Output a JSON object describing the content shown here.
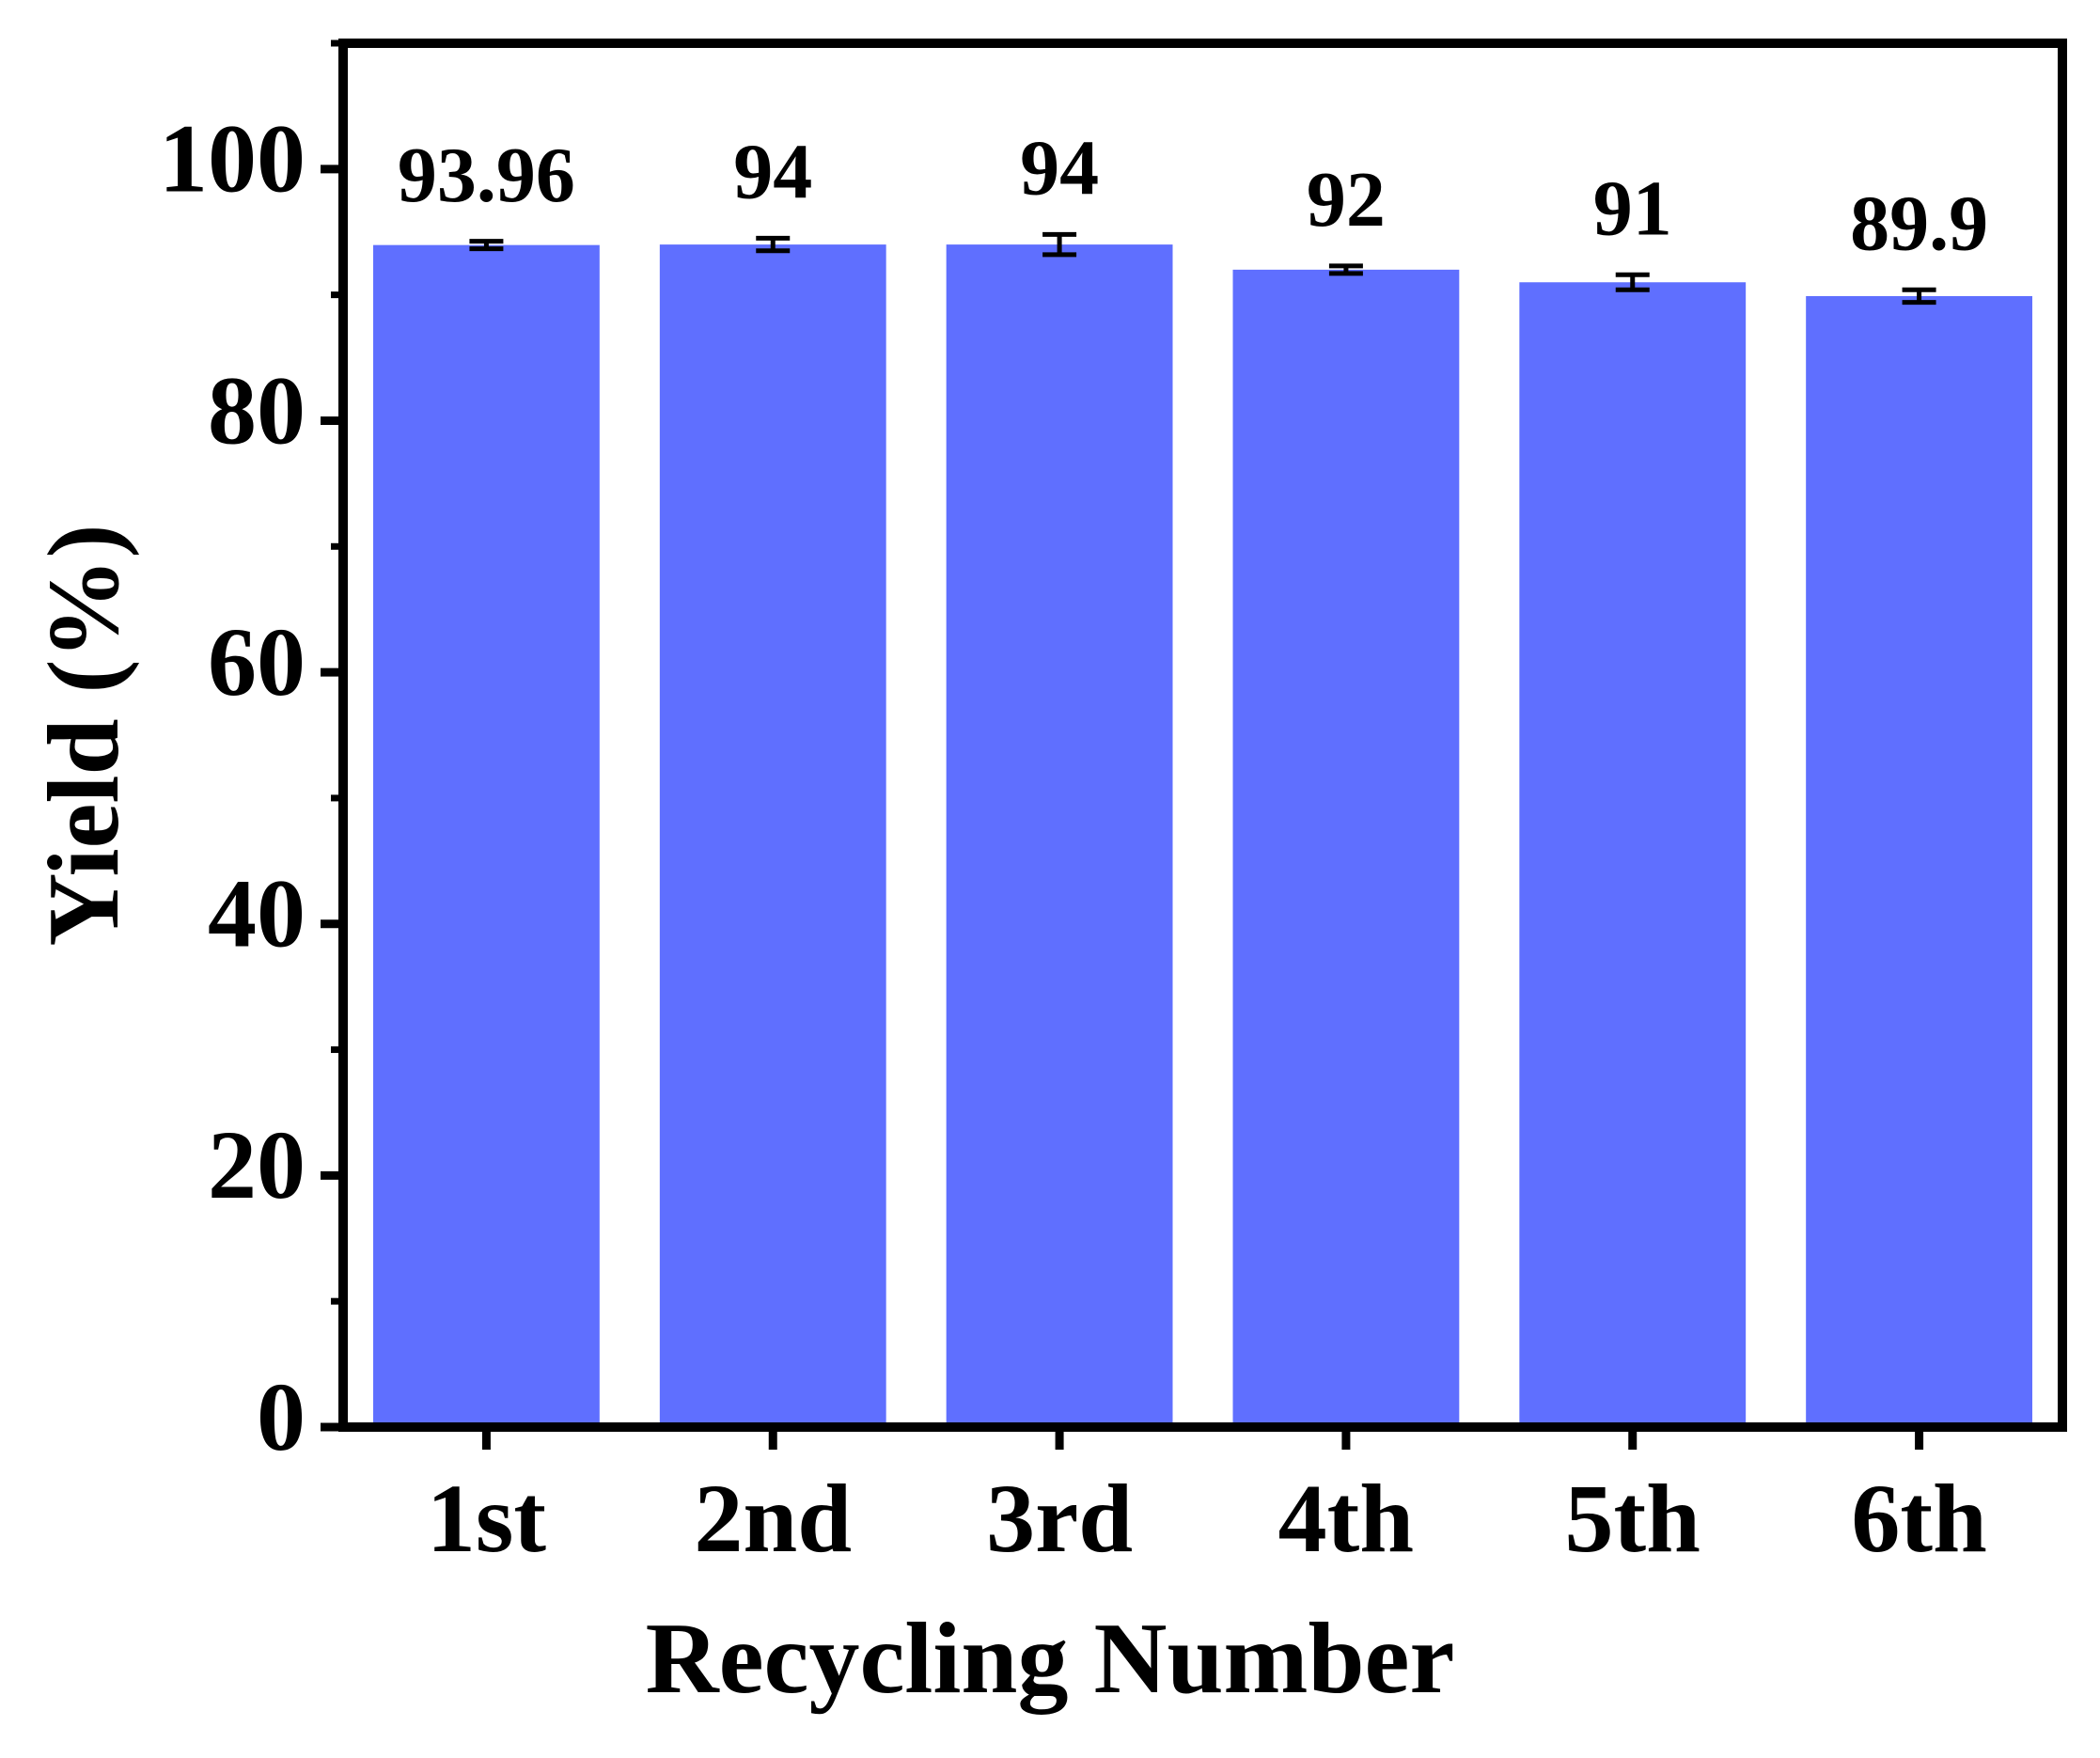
{
  "chart_data": {
    "type": "bar",
    "x_label": "Recycling Number",
    "y_label": "Yield (%)",
    "categories": [
      "1st",
      "2nd",
      "3rd",
      "4th",
      "5th",
      "6th"
    ],
    "values": [
      93.96,
      94,
      94,
      92,
      91,
      89.9
    ],
    "errors": [
      0.3,
      0.5,
      0.8,
      0.3,
      0.6,
      0.5
    ],
    "color": "#5f6fff",
    "ylim": [
      0,
      110
    ],
    "yticks": [
      0,
      20,
      40,
      60,
      80,
      100
    ],
    "minor_yticks": [
      10,
      30,
      50,
      70,
      90,
      110
    ],
    "show_value_labels": true
  }
}
